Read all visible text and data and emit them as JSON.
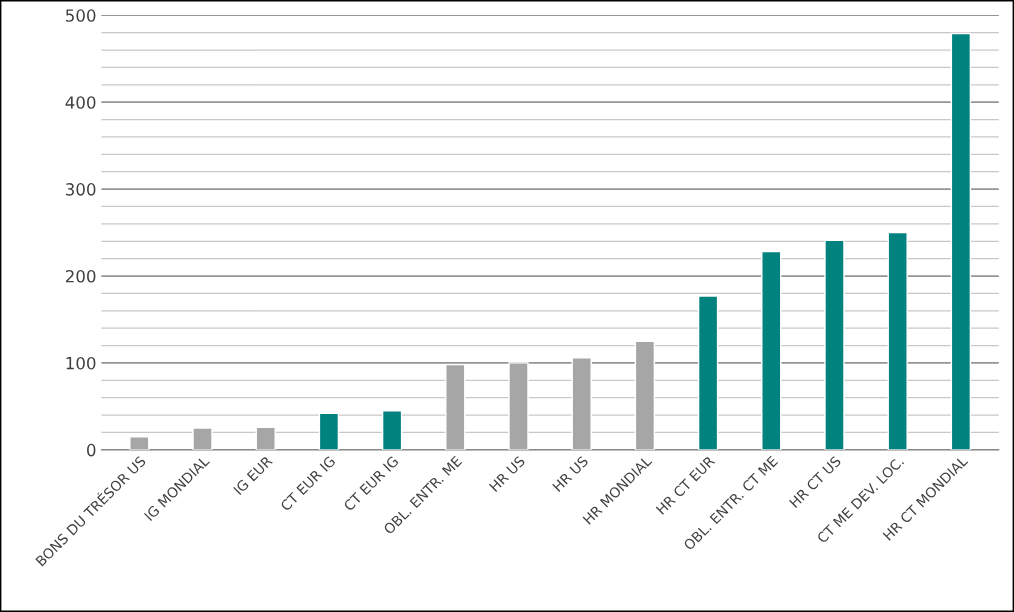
{
  "chart_data": {
    "type": "bar",
    "categories": [
      "BONS DU TRÉSOR US",
      "IG MONDIAL",
      "IG EUR",
      "CT EUR IG",
      "CT EUR IG",
      "OBL. ENTR. ME",
      "HR US",
      "HR US",
      "HR MONDIAL",
      "HR CT EUR",
      "OBL. ENTR. CT ME",
      "HR CT US",
      "CT ME DEV. LOC.",
      "HR CT MONDIAL"
    ],
    "values": [
      15,
      25,
      26,
      42,
      45,
      98,
      100,
      106,
      125,
      177,
      228,
      241,
      250,
      479
    ],
    "colors": [
      "#a6a6a6",
      "#a6a6a6",
      "#a6a6a6",
      "#00827f",
      "#00827f",
      "#a6a6a6",
      "#a6a6a6",
      "#a6a6a6",
      "#a6a6a6",
      "#00827f",
      "#00827f",
      "#00827f",
      "#00827f",
      "#00827f"
    ],
    "ylim": [
      0,
      500
    ],
    "yticks": [
      0,
      {
        "value": 20,
        "label": null
      },
      {
        "value": 40,
        "label": null
      },
      {
        "value": 60,
        "label": null
      },
      {
        "value": 80,
        "label": null
      },
      100,
      {
        "value": 120,
        "label": null
      },
      {
        "value": 140,
        "label": null
      },
      {
        "value": 160,
        "label": null
      },
      {
        "value": 180,
        "label": null
      },
      200,
      {
        "value": 220,
        "label": null
      },
      {
        "value": 240,
        "label": null
      },
      {
        "value": 260,
        "label": null
      },
      {
        "value": 280,
        "label": null
      },
      300,
      {
        "value": 320,
        "label": null
      },
      {
        "value": 340,
        "label": null
      },
      {
        "value": 360,
        "label": null
      },
      {
        "value": 380,
        "label": null
      },
      400,
      {
        "value": 420,
        "label": null
      },
      {
        "value": 440,
        "label": null
      },
      {
        "value": 460,
        "label": null
      },
      {
        "value": 480,
        "label": null
      },
      500
    ],
    "grid": "y",
    "legend": false
  }
}
